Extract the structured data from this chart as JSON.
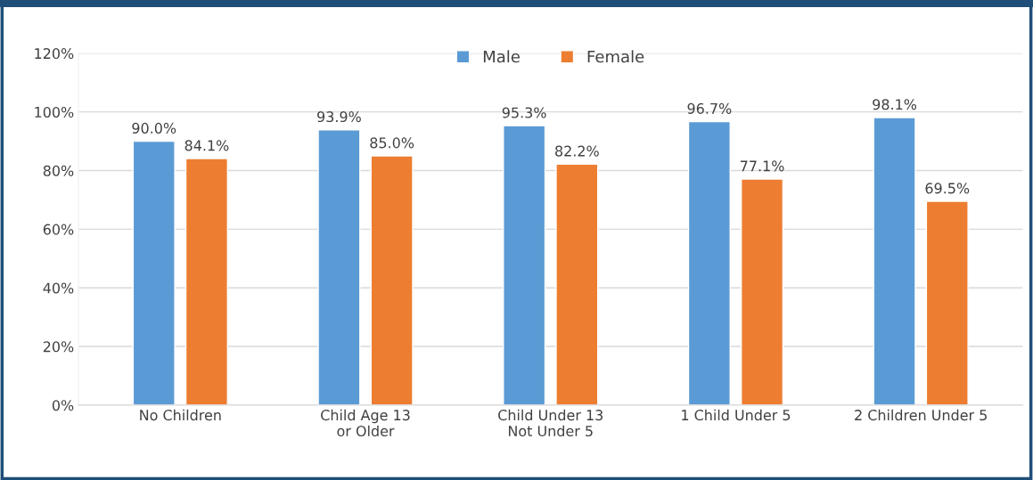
{
  "chart_data": {
    "type": "bar",
    "categories": [
      "No Children",
      "Child Age 13\nor Older",
      "Child Under 13\nNot Under 5",
      "1 Child Under 5",
      "2 Children Under 5"
    ],
    "series": [
      {
        "name": "Male",
        "color": "#5b9bd5",
        "values": [
          90.0,
          93.9,
          95.3,
          96.7,
          98.1
        ],
        "value_labels": [
          "90.0%",
          "93.9%",
          "95.3%",
          "96.7%",
          "98.1%"
        ]
      },
      {
        "name": "Female",
        "color": "#ed7d31",
        "values": [
          84.1,
          85.0,
          82.2,
          77.1,
          69.5
        ],
        "value_labels": [
          "84.1%",
          "85.0%",
          "82.2%",
          "77.1%",
          "69.5%"
        ]
      }
    ],
    "ylim": [
      0,
      120
    ],
    "yticks": [
      {
        "value": 0,
        "label": "0%"
      },
      {
        "value": 20,
        "label": "20%"
      },
      {
        "value": 40,
        "label": "40%"
      },
      {
        "value": 60,
        "label": "60%"
      },
      {
        "value": 80,
        "label": "80%"
      },
      {
        "value": 100,
        "label": "100%"
      },
      {
        "value": 120,
        "label": "120%"
      }
    ],
    "grid": "y",
    "legend": "top"
  }
}
